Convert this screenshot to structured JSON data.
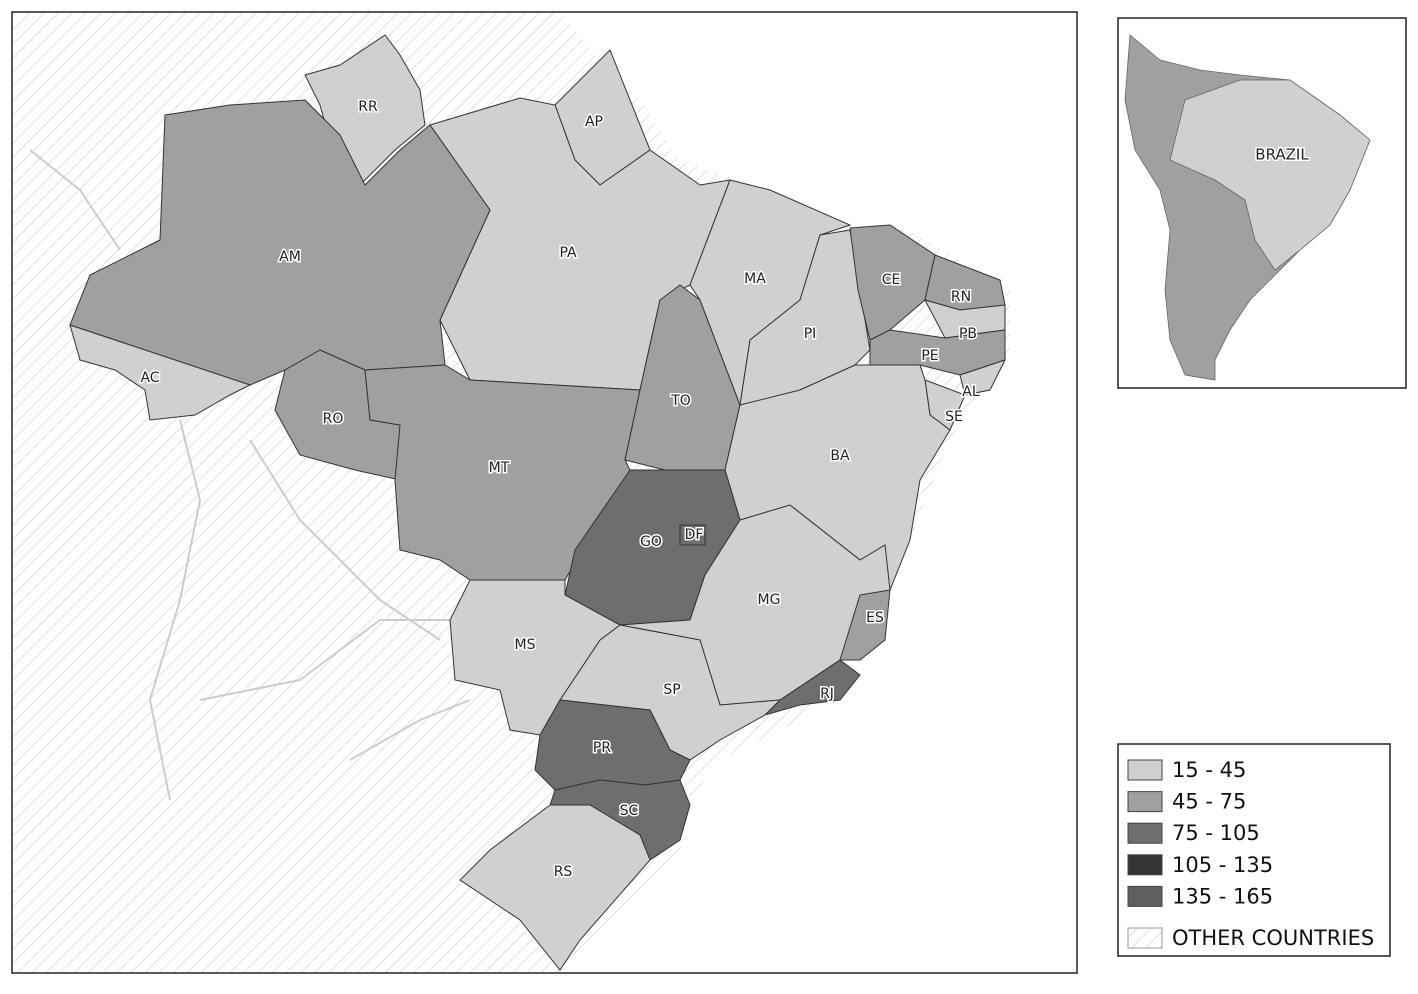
{
  "map": {
    "states": [
      {
        "label": "RR",
        "color": "#d0d0d0"
      },
      {
        "label": "AP",
        "color": "#d0d0d0"
      },
      {
        "label": "PA",
        "color": "#d0d0d0"
      },
      {
        "label": "AM",
        "color": "#a0a0a0"
      },
      {
        "label": "AC",
        "color": "#d0d0d0"
      },
      {
        "label": "RO",
        "color": "#a0a0a0"
      },
      {
        "label": "MT",
        "color": "#a0a0a0"
      },
      {
        "label": "TO",
        "color": "#a0a0a0"
      },
      {
        "label": "MA",
        "color": "#d0d0d0"
      },
      {
        "label": "PI",
        "color": "#d0d0d0"
      },
      {
        "label": "CE",
        "color": "#a0a0a0"
      },
      {
        "label": "RN",
        "color": "#a0a0a0"
      },
      {
        "label": "PB",
        "color": "#d0d0d0"
      },
      {
        "label": "PE",
        "color": "#a0a0a0"
      },
      {
        "label": "AL",
        "color": "#d0d0d0"
      },
      {
        "label": "SE",
        "color": "#d0d0d0"
      },
      {
        "label": "BA",
        "color": "#d0d0d0"
      },
      {
        "label": "GO",
        "color": "#6e6e6e"
      },
      {
        "label": "DF",
        "color": "#6e6e6e"
      },
      {
        "label": "MG",
        "color": "#d0d0d0"
      },
      {
        "label": "ES",
        "color": "#a0a0a0"
      },
      {
        "label": "RJ",
        "color": "#6e6e6e"
      },
      {
        "label": "SP",
        "color": "#d0d0d0"
      },
      {
        "label": "MS",
        "color": "#d0d0d0"
      },
      {
        "label": "PR",
        "color": "#6e6e6e"
      },
      {
        "label": "SC",
        "color": "#6e6e6e"
      },
      {
        "label": "RS",
        "color": "#d0d0d0"
      }
    ]
  },
  "inset": {
    "label": "BRAZIL"
  },
  "legend": {
    "items": [
      {
        "label": "15 - 45",
        "color": "#d0d0d0"
      },
      {
        "label": "45 - 75",
        "color": "#a0a0a0"
      },
      {
        "label": "75 - 105",
        "color": "#6e6e6e"
      },
      {
        "label": "105 - 135",
        "color": "#333333"
      },
      {
        "label": "135 - 165",
        "color": "#5f5f5f"
      }
    ],
    "other": "OTHER COUNTRIES"
  }
}
